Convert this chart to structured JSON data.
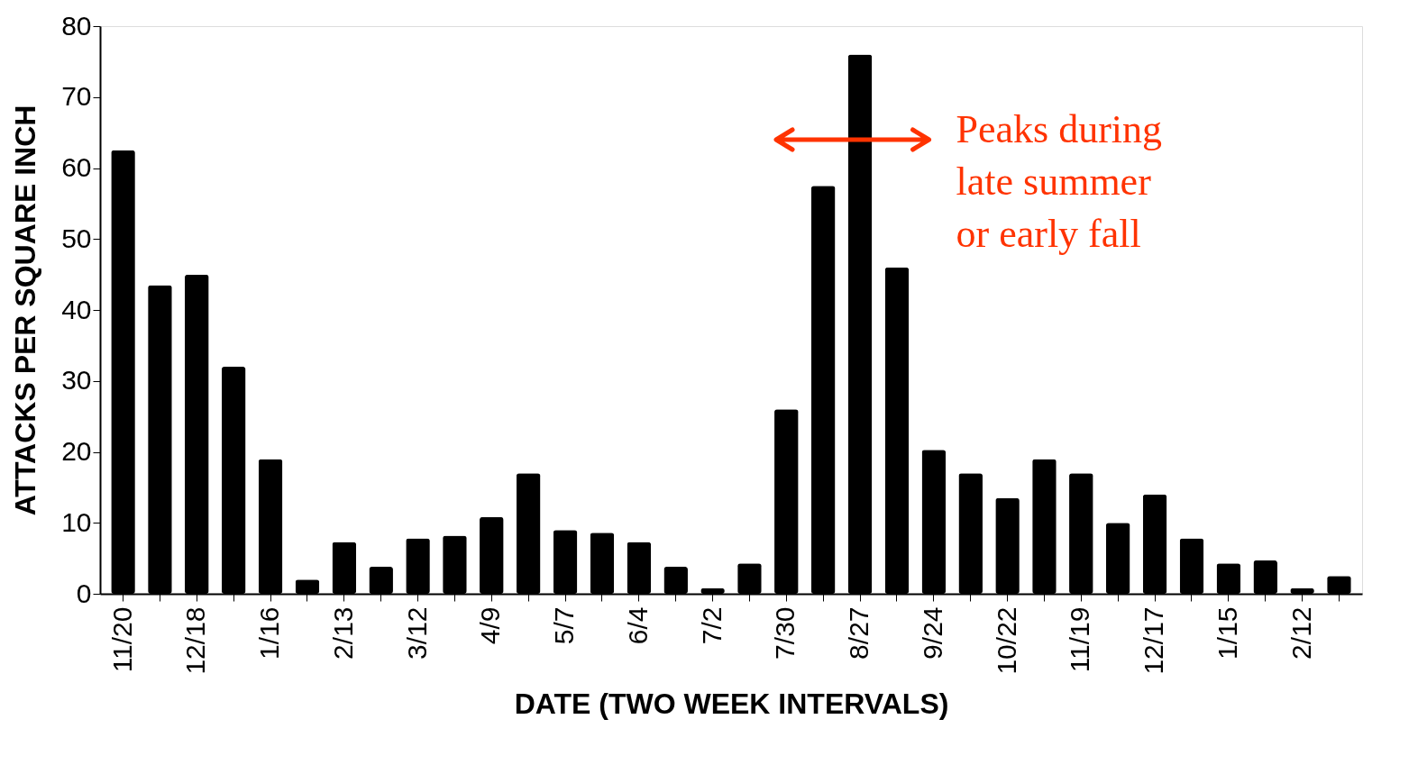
{
  "chart_data": {
    "type": "bar",
    "xlabel": "DATE (TWO WEEK INTERVALS)",
    "ylabel": "ATTACKS PER SQUARE INCH",
    "categories": [
      "11/20",
      null,
      "12/18",
      null,
      "1/16",
      null,
      "2/13",
      null,
      "3/12",
      null,
      "4/9",
      null,
      "5/7",
      null,
      "6/4",
      null,
      "7/2",
      null,
      "7/30",
      null,
      "8/27",
      null,
      "9/24",
      null,
      "10/22",
      null,
      "11/19",
      null,
      "12/17",
      null,
      "1/15",
      null,
      "2/12",
      null
    ],
    "values": [
      62.5,
      43.5,
      45,
      32,
      19,
      2,
      7.3,
      3.8,
      7.8,
      8.2,
      10.8,
      17,
      9,
      8.6,
      7.3,
      3.8,
      0.8,
      4.3,
      26,
      57.5,
      76,
      46,
      20.3,
      17,
      13.5,
      19,
      17,
      10,
      14,
      7.8,
      4.3,
      4.7,
      0.8,
      2.5
    ],
    "color": "#000000",
    "ylim": [
      0,
      80
    ],
    "yticks": [
      0,
      10,
      20,
      30,
      40,
      50,
      60,
      70,
      80
    ],
    "grid": false,
    "annotations": [
      "Peaks during\nlate summer\nor early fall"
    ]
  }
}
